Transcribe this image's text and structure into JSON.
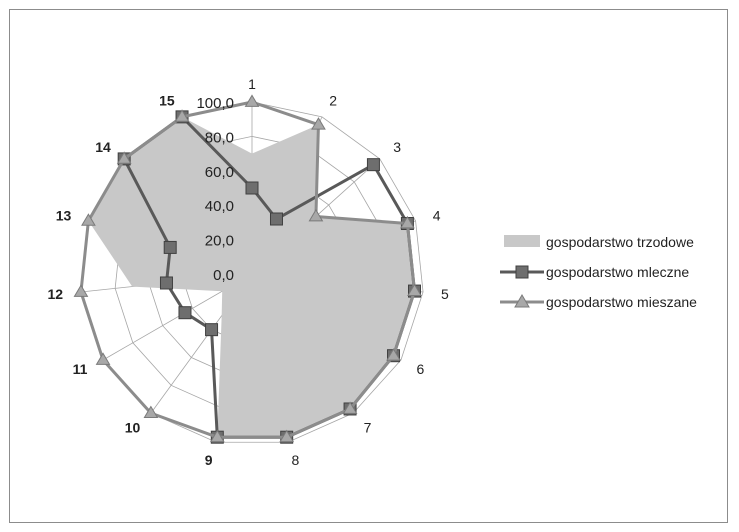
{
  "chart_data": {
    "type": "radar",
    "categories": [
      "1",
      "2",
      "3",
      "4",
      "5",
      "6",
      "7",
      "8",
      "9",
      "10",
      "11",
      "12",
      "13",
      "14",
      "15"
    ],
    "bold_categories": [
      "9",
      "10",
      "11",
      "12",
      "13",
      "14",
      "15"
    ],
    "radial_ticks": [
      "0,0",
      "20,0",
      "40,0",
      "60,0",
      "80,0",
      "100,0"
    ],
    "rmax": 100,
    "grid": true,
    "legend_position": "right",
    "series": [
      {
        "name": "gospodarstwo trzodowe",
        "style": "area",
        "color": "#c8c8c8",
        "values": [
          70,
          95,
          50,
          95,
          95,
          95,
          97,
          97,
          97,
          30,
          20,
          70,
          100,
          100,
          100
        ]
      },
      {
        "name": "gospodarstwo mleczne",
        "style": "line-square",
        "color": "#595959",
        "values": [
          50,
          35,
          95,
          95,
          95,
          95,
          97,
          97,
          97,
          40,
          45,
          50,
          50,
          100,
          100
        ]
      },
      {
        "name": "gospodarstwo mieszane",
        "style": "line-triangle",
        "color": "#8c8c8c",
        "values": [
          100,
          95,
          50,
          95,
          95,
          95,
          97,
          97,
          97,
          100,
          100,
          100,
          100,
          100,
          100
        ]
      }
    ]
  }
}
